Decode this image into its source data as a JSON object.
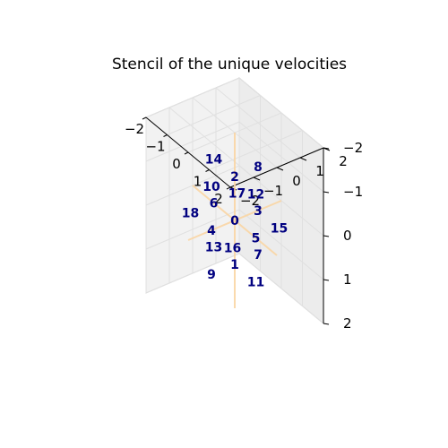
{
  "chart_data": {
    "type": "scatter",
    "title": "Stencil of the unique velocities",
    "xlabel": "",
    "ylabel": "",
    "zlabel": "",
    "xlim": [
      -2,
      2
    ],
    "ylim": [
      -2,
      2
    ],
    "zlim": [
      -2,
      2
    ],
    "x_ticks": [
      "−2",
      "−1",
      "0",
      "1",
      "2"
    ],
    "y_ticks": [
      "−2",
      "−1",
      "0",
      "1",
      "2"
    ],
    "z_ticks": [
      "−2",
      "−1",
      "0",
      "1",
      "2"
    ],
    "grid": true,
    "label_color": "#000080",
    "axis_line_color": "#fad6a5",
    "points": [
      {
        "label": "0",
        "x": 0,
        "y": 0,
        "z": 0
      },
      {
        "label": "1",
        "x": 0,
        "y": 0,
        "z": 1
      },
      {
        "label": "2",
        "x": 0,
        "y": 0,
        "z": -1
      },
      {
        "label": "3",
        "x": 0,
        "y": 1,
        "z": 0
      },
      {
        "label": "4",
        "x": 0,
        "y": -1,
        "z": 0
      },
      {
        "label": "5",
        "x": 1,
        "y": 0,
        "z": 0
      },
      {
        "label": "6",
        "x": -1,
        "y": 0,
        "z": 0
      },
      {
        "label": "7",
        "x": 0,
        "y": 1,
        "z": 1
      },
      {
        "label": "8",
        "x": 0,
        "y": 1,
        "z": -1
      },
      {
        "label": "9",
        "x": 0,
        "y": -1,
        "z": 1
      },
      {
        "label": "10",
        "x": 0,
        "y": -1,
        "z": -1
      },
      {
        "label": "11",
        "x": 1,
        "y": 0,
        "z": 1
      },
      {
        "label": "12",
        "x": 1,
        "y": 0,
        "z": -1
      },
      {
        "label": "13",
        "x": -1,
        "y": 0,
        "z": 1
      },
      {
        "label": "14",
        "x": -1,
        "y": 0,
        "z": -1
      },
      {
        "label": "15",
        "x": 1,
        "y": 1,
        "z": 0
      },
      {
        "label": "16",
        "x": 1,
        "y": -1,
        "z": 0
      },
      {
        "label": "17",
        "x": -1,
        "y": 1,
        "z": 0
      },
      {
        "label": "18",
        "x": -1,
        "y": -1,
        "z": 0
      }
    ]
  }
}
